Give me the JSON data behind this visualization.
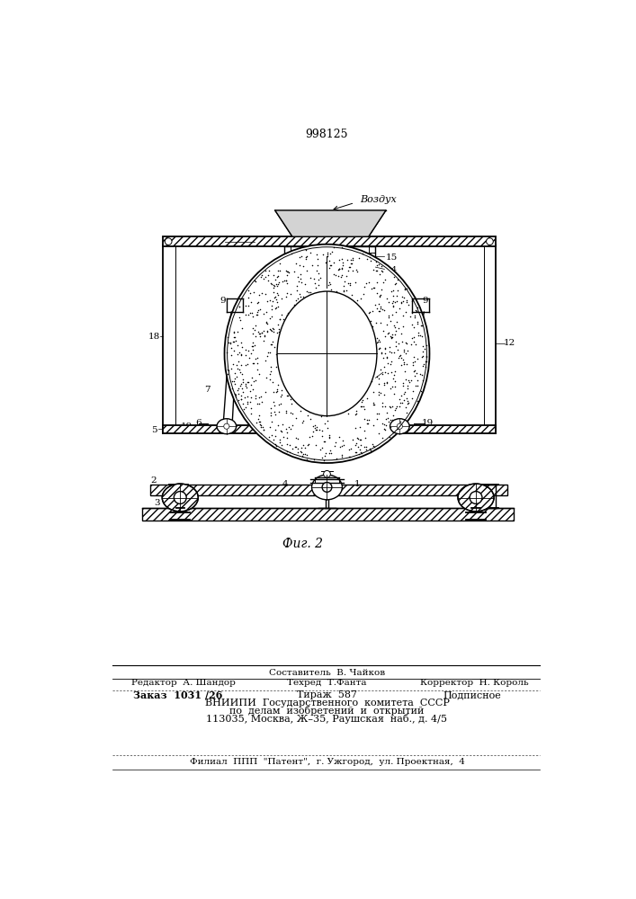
{
  "patent_number": "998125",
  "fig_label": "Фиг. 2",
  "air_label": "Воздух",
  "bg_color": "#ffffff"
}
